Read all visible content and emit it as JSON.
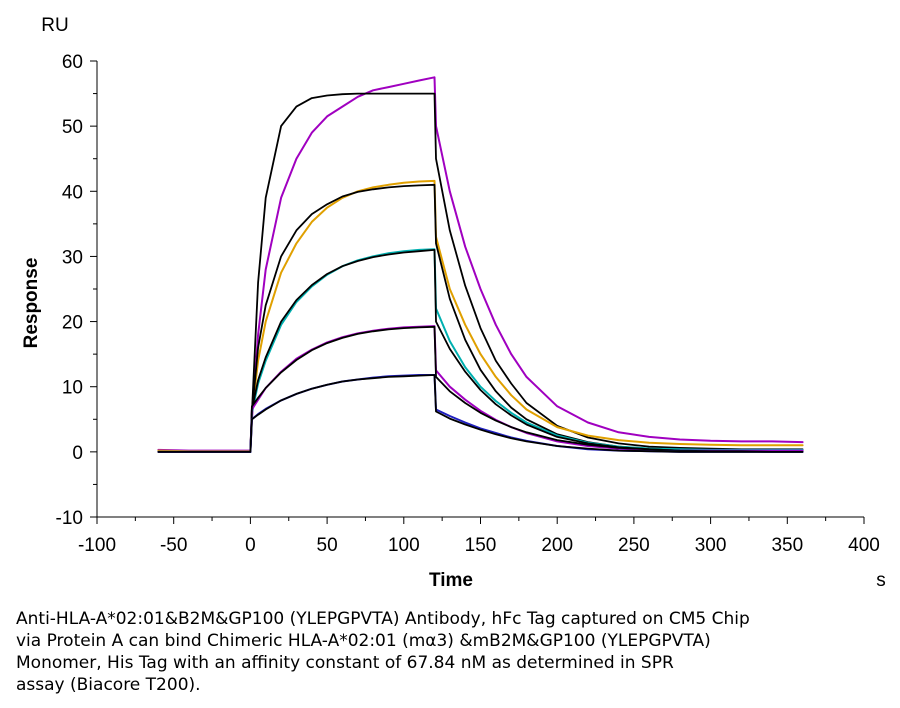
{
  "chart_data": {
    "type": "line",
    "title": "",
    "xlabel": "Time",
    "ylabel": "Response",
    "x_unit": "s",
    "y_unit": "RU",
    "xlim": [
      -100,
      400
    ],
    "ylim": [
      -10,
      60
    ],
    "x_ticks": [
      -100,
      -50,
      0,
      50,
      100,
      150,
      200,
      250,
      300,
      350,
      400
    ],
    "y_ticks": [
      -10,
      0,
      10,
      20,
      30,
      40,
      50,
      60
    ],
    "x_tick_labels": [
      "-100",
      "-50",
      "0",
      "50",
      "100",
      "150",
      "200",
      "250",
      "300",
      "350",
      "400"
    ],
    "y_tick_labels": [
      "-10",
      "0",
      "10",
      "20",
      "30",
      "40",
      "50",
      "60"
    ],
    "grid": false,
    "legend": "none",
    "x": [
      -60,
      -40,
      -20,
      0,
      1,
      5,
      10,
      20,
      30,
      40,
      50,
      60,
      70,
      80,
      90,
      100,
      110,
      120,
      121,
      130,
      140,
      150,
      160,
      170,
      180,
      200,
      220,
      240,
      260,
      280,
      300,
      320,
      340,
      360
    ],
    "series": [
      {
        "color": "#A000C0",
        "values": [
          0.3,
          0.2,
          0.2,
          0.2,
          5.0,
          18.0,
          28.0,
          39.0,
          45.0,
          49.0,
          51.5,
          53.0,
          54.5,
          55.5,
          56.0,
          56.5,
          57.0,
          57.5,
          50.0,
          40.0,
          31.5,
          25.0,
          19.5,
          15.0,
          11.5,
          7.0,
          4.5,
          3.0,
          2.3,
          1.9,
          1.7,
          1.6,
          1.6,
          1.5
        ]
      },
      {
        "color": "#000000",
        "values": [
          0.0,
          0.0,
          0.0,
          0.0,
          6.0,
          26.0,
          39.0,
          50.0,
          53.0,
          54.3,
          54.7,
          54.9,
          55.0,
          55.0,
          55.0,
          55.0,
          55.0,
          55.0,
          45.0,
          34.0,
          25.5,
          19.0,
          14.0,
          10.5,
          7.5,
          4.0,
          2.2,
          1.3,
          0.8,
          0.6,
          0.5,
          0.4,
          0.4,
          0.4
        ]
      },
      {
        "color": "#E0A000",
        "values": [
          0.2,
          0.1,
          0.1,
          0.1,
          6.0,
          14.0,
          20.0,
          27.5,
          32.0,
          35.3,
          37.5,
          39.0,
          40.0,
          40.6,
          41.0,
          41.3,
          41.5,
          41.6,
          33.0,
          25.0,
          19.5,
          15.0,
          11.5,
          8.7,
          6.5,
          3.8,
          2.5,
          1.8,
          1.4,
          1.2,
          1.1,
          1.0,
          1.0,
          1.0
        ]
      },
      {
        "color": "#000000",
        "values": [
          0.0,
          0.0,
          0.0,
          0.0,
          6.0,
          16.0,
          22.5,
          30.0,
          34.0,
          36.5,
          38.0,
          39.2,
          39.9,
          40.3,
          40.6,
          40.8,
          40.9,
          41.0,
          32.0,
          23.5,
          17.2,
          12.6,
          9.3,
          6.8,
          5.0,
          2.7,
          1.5,
          0.8,
          0.5,
          0.3,
          0.2,
          0.2,
          0.1,
          0.1
        ]
      },
      {
        "color": "#00B0B0",
        "values": [
          0.0,
          0.0,
          0.0,
          0.0,
          6.0,
          10.5,
          14.0,
          19.5,
          23.0,
          25.4,
          27.2,
          28.5,
          29.4,
          30.0,
          30.5,
          30.8,
          31.0,
          31.1,
          22.0,
          17.0,
          13.0,
          10.0,
          7.8,
          6.0,
          4.5,
          2.5,
          1.4,
          0.8,
          0.5,
          0.4,
          0.3,
          0.3,
          0.3,
          0.3
        ]
      },
      {
        "color": "#000000",
        "values": [
          0.0,
          0.0,
          0.0,
          0.0,
          6.5,
          11.0,
          14.5,
          20.0,
          23.3,
          25.6,
          27.3,
          28.5,
          29.3,
          29.9,
          30.3,
          30.6,
          30.8,
          31.0,
          20.0,
          15.8,
          12.3,
          9.5,
          7.3,
          5.6,
          4.2,
          2.3,
          1.3,
          0.7,
          0.4,
          0.2,
          0.1,
          0.1,
          0.0,
          0.0
        ]
      },
      {
        "color": "#A000C0",
        "values": [
          0.0,
          0.0,
          0.0,
          0.0,
          6.5,
          8.0,
          9.8,
          12.3,
          14.3,
          15.7,
          16.8,
          17.6,
          18.2,
          18.6,
          18.9,
          19.1,
          19.2,
          19.3,
          12.5,
          10.0,
          8.0,
          6.3,
          4.9,
          3.8,
          2.9,
          1.6,
          0.9,
          0.5,
          0.3,
          0.2,
          0.2,
          0.2,
          0.2,
          0.2
        ]
      },
      {
        "color": "#000000",
        "values": [
          0.0,
          0.0,
          0.0,
          0.0,
          7.0,
          8.3,
          9.8,
          12.2,
          14.1,
          15.6,
          16.7,
          17.5,
          18.1,
          18.5,
          18.8,
          19.0,
          19.1,
          19.2,
          11.5,
          9.3,
          7.5,
          6.0,
          4.8,
          3.8,
          3.0,
          1.8,
          1.1,
          0.6,
          0.4,
          0.2,
          0.1,
          0.1,
          0.0,
          0.0
        ]
      },
      {
        "color": "#2020C0",
        "values": [
          0.0,
          0.0,
          0.0,
          0.0,
          5.0,
          5.8,
          6.6,
          7.9,
          8.9,
          9.7,
          10.3,
          10.8,
          11.1,
          11.4,
          11.6,
          11.7,
          11.8,
          11.8,
          6.5,
          5.5,
          4.5,
          3.6,
          2.9,
          2.2,
          1.7,
          0.9,
          0.4,
          0.2,
          0.1,
          0.0,
          0.0,
          0.0,
          0.0,
          0.0
        ]
      },
      {
        "color": "#000000",
        "values": [
          0.0,
          0.0,
          0.0,
          0.0,
          5.0,
          5.7,
          6.5,
          7.9,
          8.9,
          9.7,
          10.3,
          10.8,
          11.1,
          11.3,
          11.5,
          11.6,
          11.7,
          11.8,
          6.2,
          5.1,
          4.2,
          3.4,
          2.7,
          2.1,
          1.6,
          0.9,
          0.5,
          0.2,
          0.1,
          0.0,
          0.0,
          0.0,
          0.0,
          0.0
        ]
      }
    ]
  },
  "caption": "Anti-HLA-A*02:01&B2M&GP100 (YLEPGPVTA) Antibody, hFc Tag captured on CM5 Chip\nvia Protein A can bind Chimeric HLA-A*02:01 (mα3) &mB2M&GP100 (YLEPGPVTA)\nMonomer, His Tag with an affinity constant of 67.84 nM as determined in SPR\nassay (Biacore T200)."
}
